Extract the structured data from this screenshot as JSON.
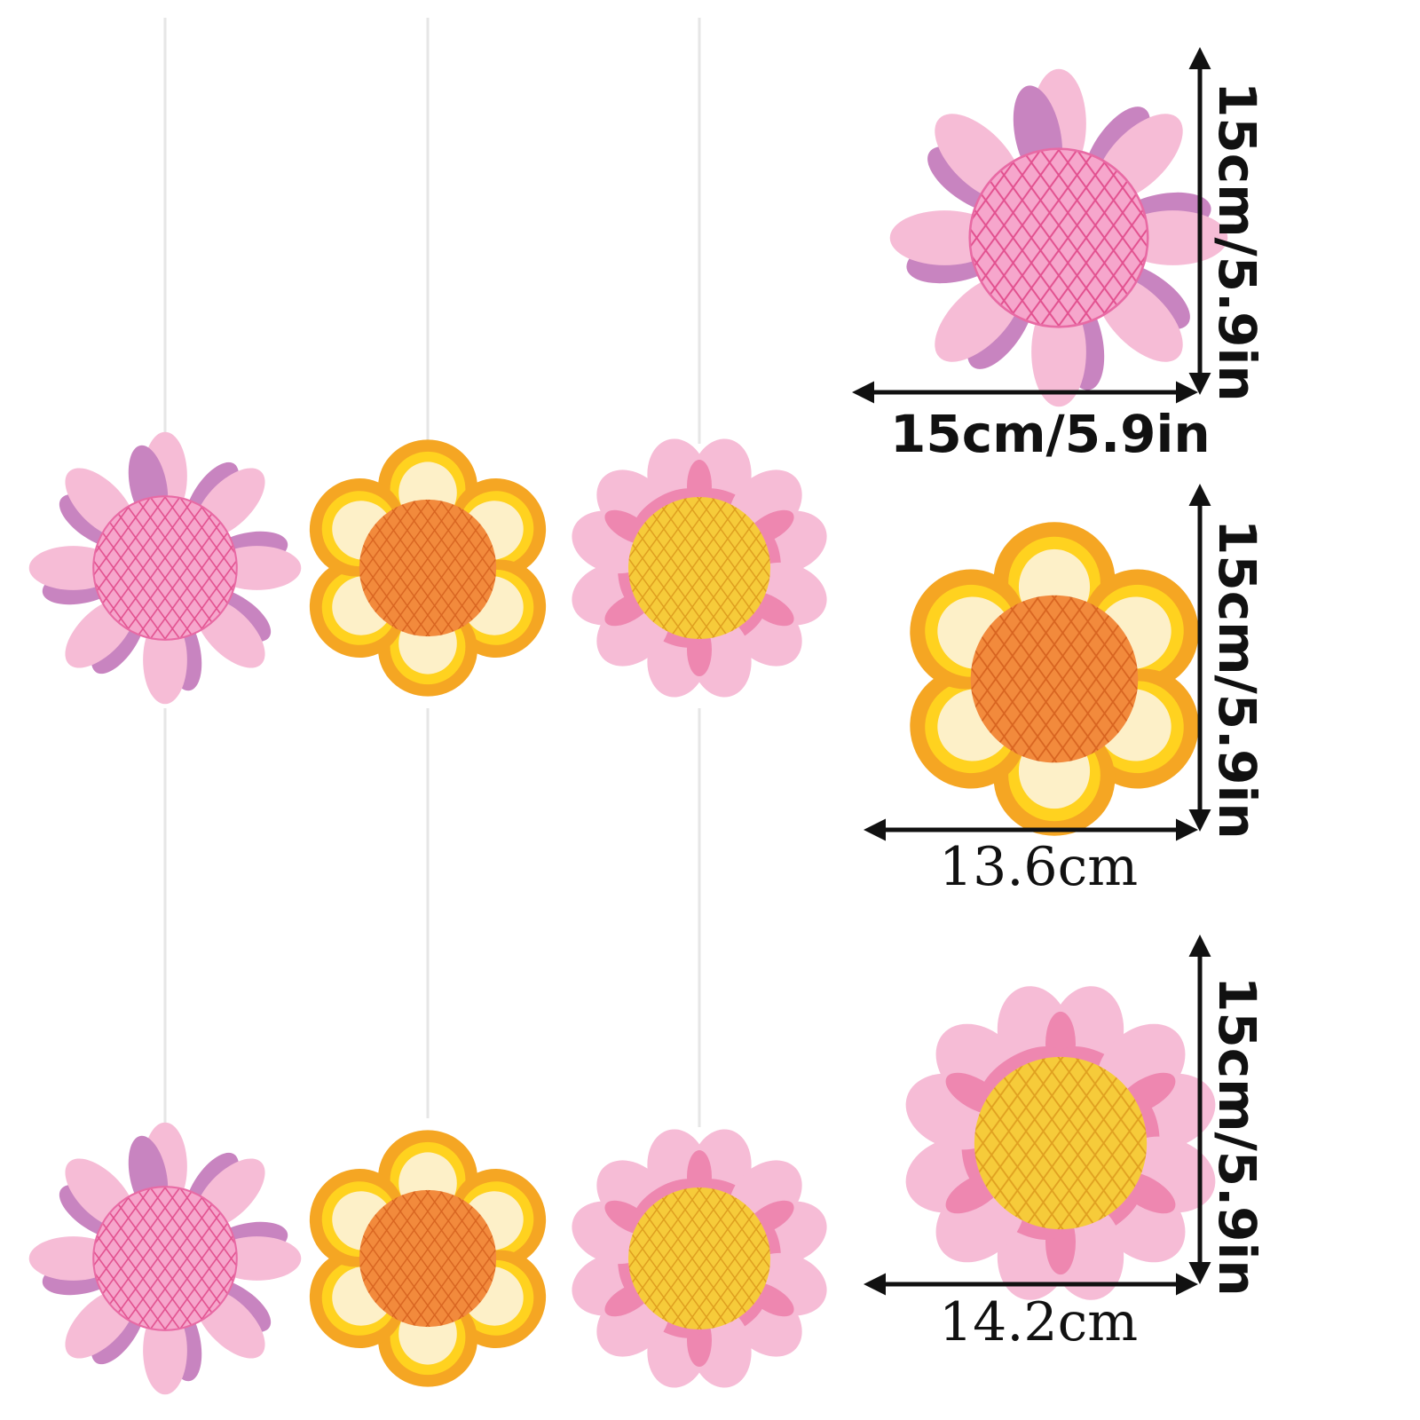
{
  "product": {
    "flower_types": [
      "pink-purple-daisy-with-pink-honeycomb-ball",
      "orange-yellow-flower-with-orange-honeycomb-ball",
      "pink-heart-petal-flower-with-yellow-honeycomb-ball"
    ],
    "colors": {
      "pink_light": "#f6bcd6",
      "purple": "#c884c0",
      "orange": "#f08a3a",
      "yellow": "#f4c430",
      "cream": "#fdf0c8",
      "pink_ball": "#f07ab0",
      "pink_mid": "#ee87b0"
    }
  },
  "dimensions": {
    "flower1": {
      "height": "15cm/5.9in",
      "width": "15cm/5.9in"
    },
    "flower2": {
      "height": "15cm/5.9in",
      "width": "13.6cm"
    },
    "flower3": {
      "height": "15cm/5.9in",
      "width": "14.2cm"
    }
  }
}
